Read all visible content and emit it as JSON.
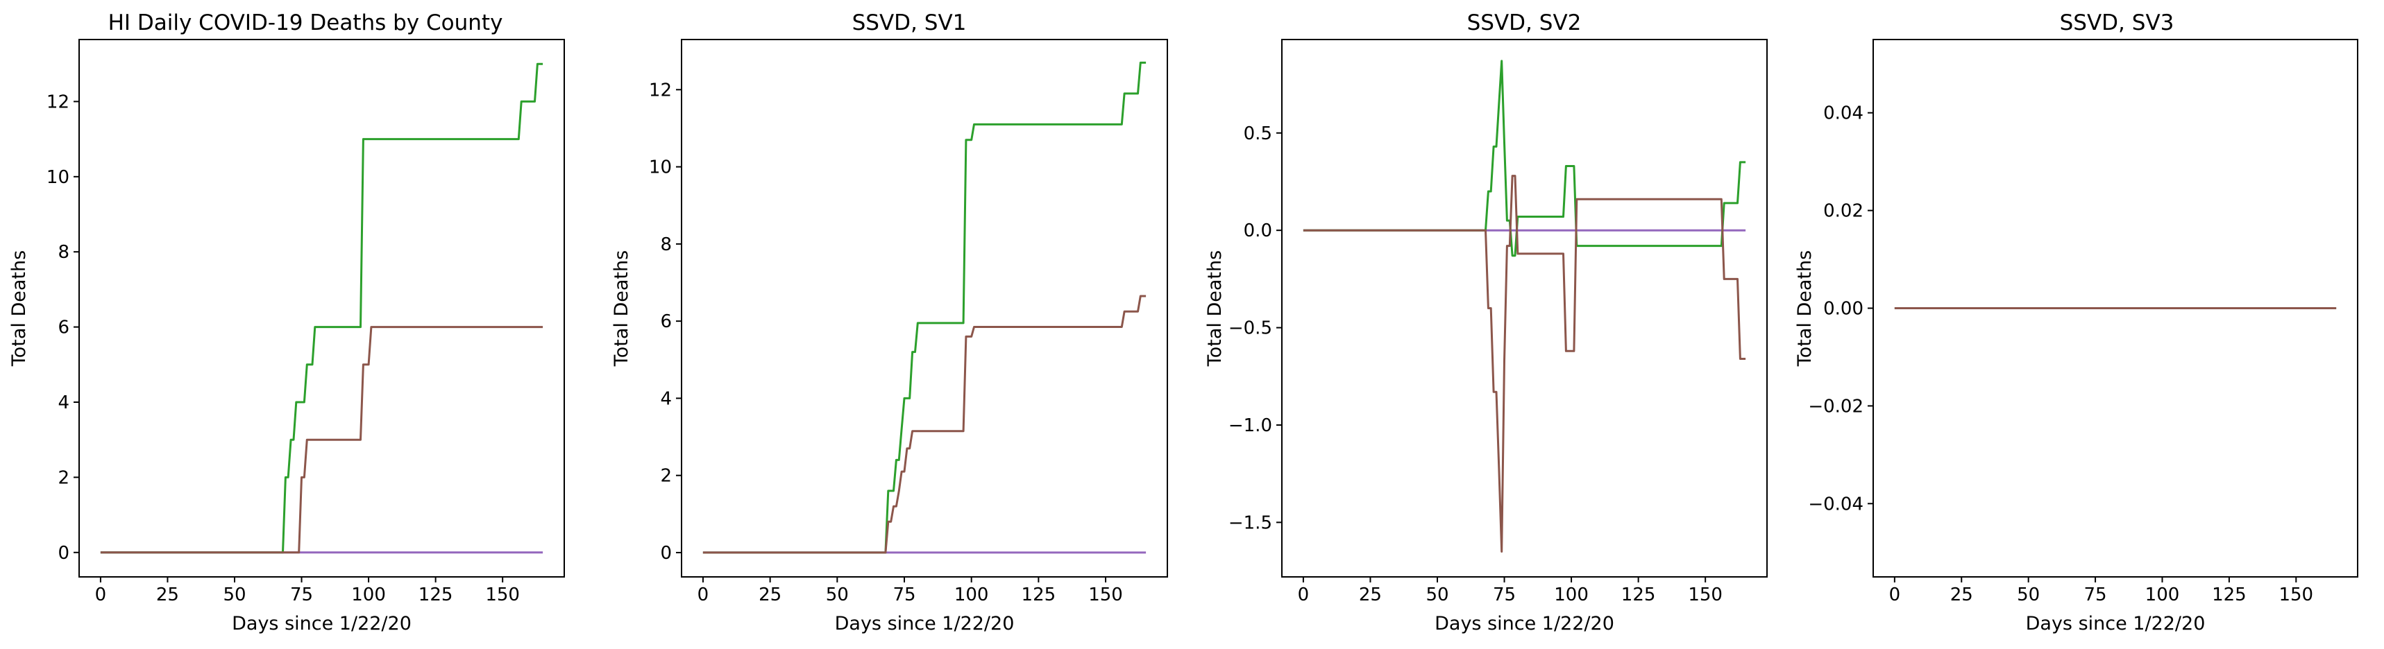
{
  "chart_data": [
    {
      "type": "line",
      "title": "HI Daily COVID-19 Deaths by County",
      "xlabel": "Days since 1/22/20",
      "ylabel": "Total Deaths",
      "xlim": [
        -8,
        173
      ],
      "ylim": [
        -0.65,
        13.65
      ],
      "xticks": [
        0,
        25,
        50,
        75,
        100,
        125,
        150
      ],
      "yticks": [
        0,
        2,
        4,
        6,
        8,
        10,
        12
      ],
      "grid": false,
      "colors": [
        "#9467bd",
        "#2ca02c",
        "#8c564b"
      ],
      "series": [
        {
          "x": [
            0,
            165
          ],
          "y": [
            0,
            0
          ]
        },
        {
          "x": [
            0,
            68,
            69,
            70,
            71,
            72,
            73,
            76,
            77,
            79,
            80,
            97,
            98,
            156,
            157,
            162,
            163,
            165
          ],
          "y": [
            0,
            0,
            2,
            2,
            3,
            3,
            4,
            4,
            5,
            5,
            6,
            6,
            11,
            11,
            12,
            12,
            13,
            13
          ]
        },
        {
          "x": [
            0,
            74,
            75,
            76,
            77,
            78,
            97,
            98,
            100,
            101,
            165
          ],
          "y": [
            0,
            0,
            2,
            2,
            3,
            3,
            3,
            5,
            5,
            6,
            6
          ]
        }
      ]
    },
    {
      "type": "line",
      "title": "SSVD, SV1",
      "xlabel": "Days since 1/22/20",
      "ylabel": "Total Deaths",
      "xlim": [
        -8,
        173
      ],
      "ylim": [
        -0.63,
        13.3
      ],
      "xticks": [
        0,
        25,
        50,
        75,
        100,
        125,
        150
      ],
      "yticks": [
        0,
        2,
        4,
        6,
        8,
        10,
        12
      ],
      "grid": false,
      "colors": [
        "#9467bd",
        "#2ca02c",
        "#8c564b"
      ],
      "series": [
        {
          "x": [
            0,
            165
          ],
          "y": [
            0,
            0
          ]
        },
        {
          "x": [
            0,
            68,
            69,
            71,
            72,
            73,
            74,
            75,
            77,
            78,
            79,
            80,
            97,
            98,
            100,
            101,
            156,
            157,
            162,
            163,
            165
          ],
          "y": [
            0,
            0,
            1.6,
            1.6,
            2.4,
            2.4,
            3.2,
            4.0,
            4.0,
            5.2,
            5.2,
            5.95,
            5.95,
            10.7,
            10.7,
            11.1,
            11.1,
            11.9,
            11.9,
            12.7,
            12.7
          ]
        },
        {
          "x": [
            0,
            68,
            69,
            70,
            71,
            72,
            73,
            74,
            75,
            76,
            77,
            78,
            79,
            80,
            97,
            98,
            100,
            101,
            156,
            157,
            162,
            163,
            165
          ],
          "y": [
            0,
            0,
            0.8,
            0.8,
            1.2,
            1.2,
            1.6,
            2.1,
            2.1,
            2.7,
            2.7,
            3.15,
            3.15,
            3.15,
            3.15,
            5.6,
            5.6,
            5.85,
            5.85,
            6.25,
            6.25,
            6.65,
            6.65
          ]
        }
      ]
    },
    {
      "type": "line",
      "title": "SSVD, SV2",
      "xlabel": "Days since 1/22/20",
      "ylabel": "Total Deaths",
      "xlim": [
        -8,
        173
      ],
      "ylim": [
        -1.78,
        0.98
      ],
      "xticks": [
        0,
        25,
        50,
        75,
        100,
        125,
        150
      ],
      "yticks": [
        -1.5,
        -1.0,
        -0.5,
        0.0,
        0.5
      ],
      "grid": false,
      "colors": [
        "#9467bd",
        "#2ca02c",
        "#8c564b"
      ],
      "series": [
        {
          "x": [
            0,
            165
          ],
          "y": [
            0,
            0
          ]
        },
        {
          "x": [
            0,
            68,
            69,
            70,
            71,
            72,
            73,
            74,
            75,
            76,
            77,
            78,
            79,
            80,
            97,
            98,
            101,
            102,
            156,
            157,
            162,
            163,
            165
          ],
          "y": [
            0,
            0,
            0.2,
            0.2,
            0.43,
            0.43,
            0.65,
            0.87,
            0.45,
            0.05,
            0.05,
            -0.13,
            -0.13,
            0.07,
            0.07,
            0.33,
            0.33,
            -0.08,
            -0.08,
            0.14,
            0.14,
            0.35,
            0.35
          ]
        },
        {
          "x": [
            0,
            68,
            69,
            70,
            71,
            72,
            73,
            74,
            75,
            76,
            77,
            78,
            79,
            80,
            97,
            98,
            101,
            102,
            156,
            157,
            162,
            163,
            165
          ],
          "y": [
            0,
            0,
            -0.4,
            -0.4,
            -0.83,
            -0.83,
            -1.22,
            -1.65,
            -0.67,
            -0.08,
            -0.08,
            0.28,
            0.28,
            -0.12,
            -0.12,
            -0.62,
            -0.62,
            0.16,
            0.16,
            -0.25,
            -0.25,
            -0.66,
            -0.66
          ]
        }
      ]
    },
    {
      "type": "line",
      "title": "SSVD, SV3",
      "xlabel": "Days since 1/22/20",
      "ylabel": "Total Deaths",
      "xlim": [
        -8,
        173
      ],
      "ylim": [
        -0.055,
        0.055
      ],
      "xticks": [
        0,
        25,
        50,
        75,
        100,
        125,
        150
      ],
      "yticks": [
        -0.04,
        -0.02,
        0.0,
        0.02,
        0.04
      ],
      "grid": false,
      "colors": [
        "#9467bd",
        "#2ca02c",
        "#8c564b"
      ],
      "series": [
        {
          "x": [
            0,
            165
          ],
          "y": [
            0,
            0
          ]
        },
        {
          "x": [
            0,
            165
          ],
          "y": [
            0,
            0
          ]
        },
        {
          "x": [
            0,
            165
          ],
          "y": [
            0,
            0
          ]
        }
      ]
    }
  ]
}
